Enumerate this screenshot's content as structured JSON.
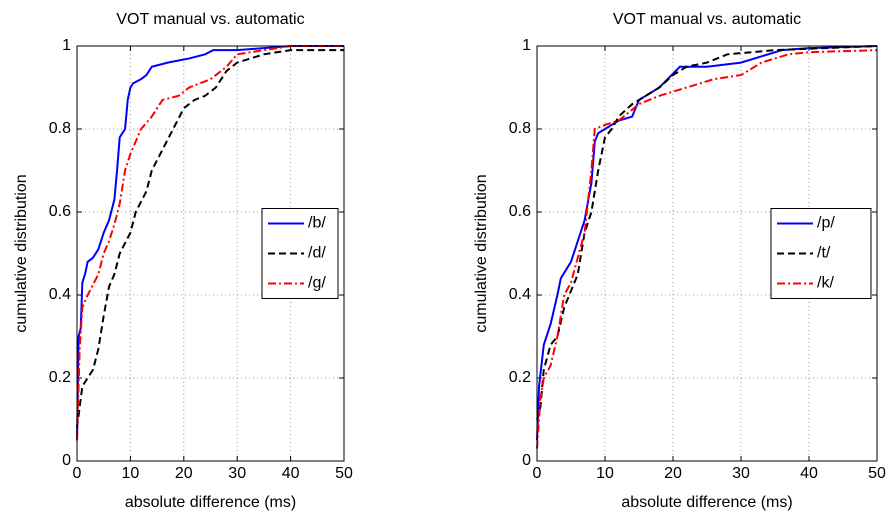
{
  "chart_data": [
    {
      "type": "line",
      "title": "VOT manual vs. automatic",
      "x_label": "absolute difference (ms)",
      "y_label": "cumulative distribution",
      "xlim": [
        0,
        50
      ],
      "ylim": [
        0,
        1
      ],
      "xticks": [
        0,
        10,
        20,
        30,
        40,
        50
      ],
      "yticks": [
        0,
        0.2,
        0.4,
        0.6,
        0.8,
        1
      ],
      "grid": true,
      "legend": "right",
      "series": [
        {
          "name": "/b/",
          "color": "#0000ff",
          "linestyle": "solid",
          "x": [
            0,
            0.3,
            0.7,
            1,
            1.5,
            2,
            3,
            4,
            5,
            6,
            7,
            7.5,
            8,
            9,
            9.5,
            10,
            10.5,
            12,
            13,
            14,
            17,
            21,
            24,
            25.5,
            30,
            40,
            50
          ],
          "values": [
            0.05,
            0.3,
            0.32,
            0.43,
            0.45,
            0.48,
            0.49,
            0.51,
            0.55,
            0.58,
            0.63,
            0.7,
            0.78,
            0.8,
            0.87,
            0.9,
            0.91,
            0.92,
            0.93,
            0.95,
            0.96,
            0.97,
            0.98,
            0.99,
            0.99,
            1,
            1
          ]
        },
        {
          "name": "/d/",
          "color": "#000000",
          "linestyle": "dashed",
          "x": [
            0,
            0.5,
            1,
            3,
            4,
            5,
            6,
            7,
            8,
            10,
            11,
            13,
            14,
            16,
            18,
            20,
            22,
            24,
            26,
            28,
            30,
            35,
            40,
            50
          ],
          "values": [
            0.08,
            0.13,
            0.18,
            0.22,
            0.27,
            0.35,
            0.42,
            0.45,
            0.5,
            0.55,
            0.6,
            0.65,
            0.7,
            0.75,
            0.8,
            0.85,
            0.87,
            0.88,
            0.9,
            0.94,
            0.96,
            0.98,
            0.99,
            0.99
          ]
        },
        {
          "name": "/g/",
          "color": "#ff0000",
          "linestyle": "dashdot",
          "x": [
            0,
            0.5,
            1,
            2,
            4,
            5,
            6,
            7,
            8,
            9,
            10,
            11,
            12,
            14,
            16,
            19,
            21,
            25,
            28,
            30,
            35,
            40,
            50
          ],
          "values": [
            0.05,
            0.27,
            0.37,
            0.4,
            0.45,
            0.5,
            0.53,
            0.57,
            0.62,
            0.7,
            0.74,
            0.77,
            0.8,
            0.83,
            0.87,
            0.88,
            0.9,
            0.92,
            0.95,
            0.98,
            0.99,
            1,
            1
          ]
        }
      ]
    },
    {
      "type": "line",
      "title": "VOT manual vs. automatic",
      "x_label": "absolute difference (ms)",
      "y_label": "cumulative distribution",
      "xlim": [
        0,
        50
      ],
      "ylim": [
        0,
        1
      ],
      "xticks": [
        0,
        10,
        20,
        30,
        40,
        50
      ],
      "yticks": [
        0,
        0.2,
        0.4,
        0.6,
        0.8,
        1
      ],
      "grid": true,
      "legend": "right",
      "series": [
        {
          "name": "/p/",
          "color": "#0000ff",
          "linestyle": "solid",
          "x": [
            0,
            0.3,
            1,
            2,
            3,
            3.5,
            5,
            6,
            7,
            8,
            8.5,
            9,
            10,
            12,
            14,
            15,
            16,
            18,
            21,
            25,
            30,
            36,
            40,
            50
          ],
          "values": [
            0.05,
            0.18,
            0.28,
            0.33,
            0.4,
            0.44,
            0.48,
            0.53,
            0.58,
            0.67,
            0.77,
            0.79,
            0.8,
            0.82,
            0.83,
            0.87,
            0.88,
            0.9,
            0.95,
            0.95,
            0.96,
            0.99,
            0.995,
            1
          ]
        },
        {
          "name": "/t/",
          "color": "#000000",
          "linestyle": "dashed",
          "x": [
            0,
            0.5,
            1,
            2,
            3,
            4,
            6,
            7,
            8,
            9,
            10,
            11,
            12,
            14,
            16,
            18,
            20,
            22,
            25,
            28,
            35,
            50
          ],
          "values": [
            0.1,
            0.13,
            0.22,
            0.28,
            0.3,
            0.37,
            0.45,
            0.55,
            0.6,
            0.7,
            0.78,
            0.8,
            0.83,
            0.86,
            0.88,
            0.9,
            0.93,
            0.95,
            0.96,
            0.98,
            0.99,
            1
          ]
        },
        {
          "name": "/k/",
          "color": "#ff0000",
          "linestyle": "dashdot",
          "x": [
            0,
            0.5,
            1,
            2,
            3,
            4,
            5,
            7,
            8,
            8.5,
            10,
            12,
            15,
            18,
            22,
            26,
            30,
            33,
            37,
            40,
            50
          ],
          "values": [
            0.03,
            0.15,
            0.2,
            0.23,
            0.3,
            0.4,
            0.43,
            0.55,
            0.7,
            0.8,
            0.81,
            0.82,
            0.86,
            0.88,
            0.9,
            0.92,
            0.93,
            0.96,
            0.98,
            0.985,
            0.99
          ]
        }
      ]
    }
  ]
}
